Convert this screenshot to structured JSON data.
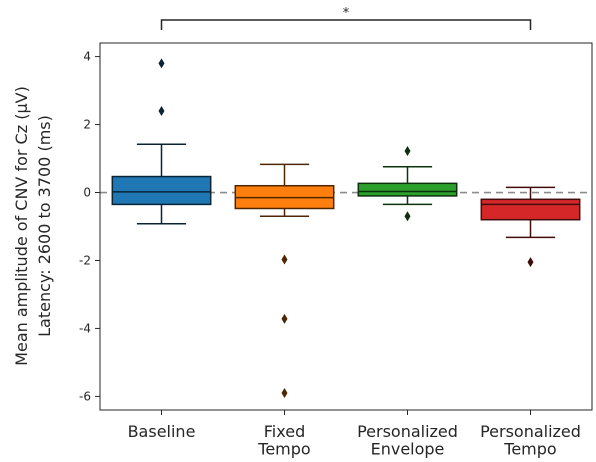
{
  "chart_data": {
    "type": "box",
    "ylabel_line1": "Mean amplitude of CNV for Cz (μV)",
    "ylabel_line2": "Latency: 2600 to 3700 (ms)",
    "ylim": [
      -6.4,
      4.4
    ],
    "yticks": [
      -6,
      -4,
      -2,
      0,
      2,
      4
    ],
    "reference_line": 0,
    "groups": [
      {
        "label_lines": [
          "Baseline"
        ],
        "color": "#1f77b4",
        "q1": -0.35,
        "median": 0.02,
        "q3": 0.47,
        "whisker_low": -0.92,
        "whisker_high": 1.42,
        "outliers": [
          3.8,
          2.4
        ]
      },
      {
        "label_lines": [
          "Fixed",
          "Tempo"
        ],
        "color": "#ff7f0e",
        "q1": -0.47,
        "median": -0.15,
        "q3": 0.2,
        "whisker_low": -0.7,
        "whisker_high": 0.83,
        "outliers": [
          -1.97,
          -3.72,
          -5.9
        ]
      },
      {
        "label_lines": [
          "Personalized",
          "Envelope"
        ],
        "color": "#2ca02c",
        "q1": -0.1,
        "median": 0.03,
        "q3": 0.27,
        "whisker_low": -0.35,
        "whisker_high": 0.76,
        "outliers": [
          1.22,
          -0.7
        ]
      },
      {
        "label_lines": [
          "Personalized",
          "Tempo"
        ],
        "color": "#d62728",
        "q1": -0.8,
        "median": -0.35,
        "q3": -0.2,
        "whisker_low": -1.32,
        "whisker_high": 0.15,
        "outliers": [
          -2.05
        ]
      }
    ],
    "significance": {
      "from": 0,
      "to": 3,
      "label": "*"
    }
  }
}
